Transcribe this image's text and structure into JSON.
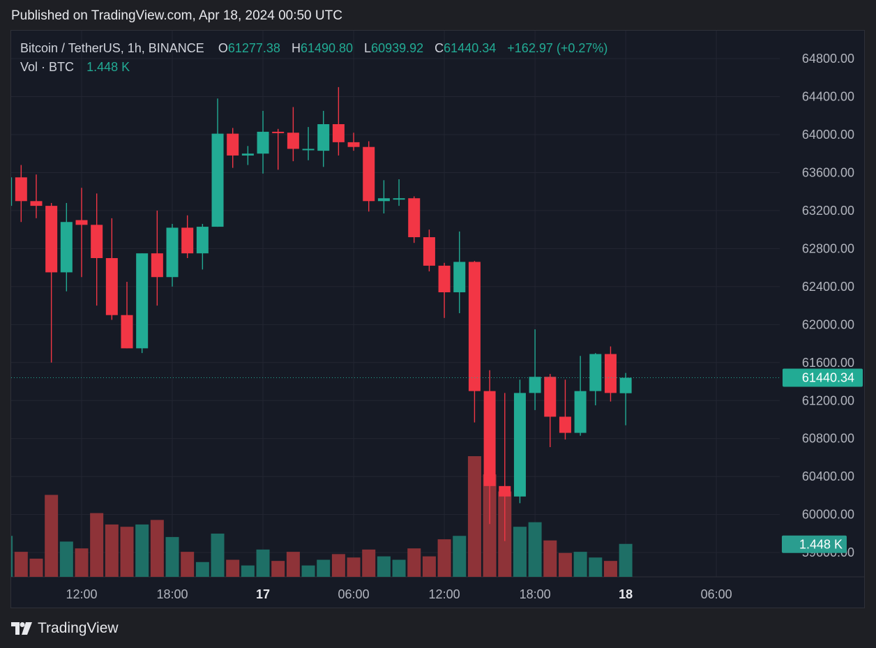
{
  "header": {
    "published_text": "Published on TradingView.com, Apr 18, 2024 00:50 UTC"
  },
  "legend": {
    "symbol": "Bitcoin / TetherUS, 1h, BINANCE",
    "o_label": "O",
    "o_value": "61277.38",
    "h_label": "H",
    "h_value": "61490.80",
    "l_label": "L",
    "l_value": "60939.92",
    "c_label": "C",
    "c_value": "61440.34",
    "change": "+162.97 (+0.27%)",
    "vol_label": "Vol · BTC",
    "vol_value": "1.448 K"
  },
  "footer": {
    "brand": "TradingView"
  },
  "colors": {
    "up": "#22ab94",
    "down": "#f23645",
    "up_volume": "#1e6f66",
    "down_volume": "#8e3338",
    "background": "#161a25",
    "grid": "#232632",
    "axis_text": "#b2b5be"
  },
  "chart_data": {
    "type": "candlestick",
    "symbol": "Bitcoin / TetherUS",
    "interval": "1h",
    "exchange": "BINANCE",
    "price_axis": {
      "range": [
        59300,
        65050
      ],
      "ticks": [
        "64800.00",
        "64400.00",
        "64000.00",
        "63600.00",
        "63200.00",
        "62800.00",
        "62400.00",
        "62000.00",
        "61600.00",
        "61200.00",
        "60800.00",
        "60400.00",
        "60000.00",
        "59600.00"
      ]
    },
    "time_axis": {
      "labels": [
        {
          "text": "12:00",
          "hours": 0,
          "bold": false
        },
        {
          "text": "18:00",
          "hours": 6,
          "bold": false
        },
        {
          "text": "17",
          "hours": 12,
          "bold": true
        },
        {
          "text": "06:00",
          "hours": 18,
          "bold": false
        },
        {
          "text": "12:00",
          "hours": 24,
          "bold": false
        },
        {
          "text": "18:00",
          "hours": 30,
          "bold": false
        },
        {
          "text": "18",
          "hours": 36,
          "bold": true
        },
        {
          "text": "06:00",
          "hours": 42,
          "bold": false
        }
      ]
    },
    "last_price": "61440.34",
    "last_volume": "1.448 K",
    "volume_max": 5.3,
    "candles": [
      {
        "t": -5,
        "o": 63250,
        "h": 63650,
        "l": 63200,
        "c": 63550,
        "v": 1.8
      },
      {
        "t": -4,
        "o": 63550,
        "h": 63680,
        "l": 63080,
        "c": 63300,
        "v": 1.1
      },
      {
        "t": -3,
        "o": 63300,
        "h": 63580,
        "l": 63120,
        "c": 63250,
        "v": 0.8
      },
      {
        "t": -2,
        "o": 63250,
        "h": 63280,
        "l": 61600,
        "c": 62550,
        "v": 3.6
      },
      {
        "t": -1,
        "o": 62550,
        "h": 63280,
        "l": 62350,
        "c": 63080,
        "v": 1.55
      },
      {
        "t": 0,
        "o": 63100,
        "h": 63440,
        "l": 62500,
        "c": 63050,
        "v": 1.25
      },
      {
        "t": 1,
        "o": 63050,
        "h": 63380,
        "l": 62200,
        "c": 62700,
        "v": 2.8
      },
      {
        "t": 2,
        "o": 62700,
        "h": 63120,
        "l": 62050,
        "c": 62100,
        "v": 2.3
      },
      {
        "t": 3,
        "o": 62100,
        "h": 62450,
        "l": 61750,
        "c": 61750,
        "v": 2.2
      },
      {
        "t": 4,
        "o": 61750,
        "h": 62750,
        "l": 61700,
        "c": 62750,
        "v": 2.3
      },
      {
        "t": 5,
        "o": 62750,
        "h": 63200,
        "l": 62200,
        "c": 62500,
        "v": 2.5
      },
      {
        "t": 6,
        "o": 62500,
        "h": 63060,
        "l": 62400,
        "c": 63020,
        "v": 1.75
      },
      {
        "t": 7,
        "o": 63020,
        "h": 63150,
        "l": 62700,
        "c": 62750,
        "v": 1.1
      },
      {
        "t": 8,
        "o": 62750,
        "h": 63060,
        "l": 62580,
        "c": 63030,
        "v": 0.65
      },
      {
        "t": 9,
        "o": 63030,
        "h": 64380,
        "l": 63030,
        "c": 64010,
        "v": 1.9
      },
      {
        "t": 10,
        "o": 64010,
        "h": 64070,
        "l": 63650,
        "c": 63780,
        "v": 0.75
      },
      {
        "t": 11,
        "o": 63780,
        "h": 63880,
        "l": 63680,
        "c": 63800,
        "v": 0.5
      },
      {
        "t": 12,
        "o": 63800,
        "h": 64250,
        "l": 63590,
        "c": 64030,
        "v": 1.2
      },
      {
        "t": 13,
        "o": 64030,
        "h": 64060,
        "l": 63630,
        "c": 64020,
        "v": 0.7
      },
      {
        "t": 14,
        "o": 64020,
        "h": 64290,
        "l": 63720,
        "c": 63850,
        "v": 1.1
      },
      {
        "t": 15,
        "o": 63850,
        "h": 64080,
        "l": 63730,
        "c": 63850,
        "v": 0.5
      },
      {
        "t": 16,
        "o": 63830,
        "h": 64250,
        "l": 63660,
        "c": 64110,
        "v": 0.75
      },
      {
        "t": 17,
        "o": 64110,
        "h": 64500,
        "l": 63780,
        "c": 63920,
        "v": 1.0
      },
      {
        "t": 18,
        "o": 63920,
        "h": 64020,
        "l": 63830,
        "c": 63870,
        "v": 0.85
      },
      {
        "t": 19,
        "o": 63870,
        "h": 63930,
        "l": 63190,
        "c": 63300,
        "v": 1.2
      },
      {
        "t": 20,
        "o": 63300,
        "h": 63520,
        "l": 63170,
        "c": 63330,
        "v": 0.9
      },
      {
        "t": 21,
        "o": 63330,
        "h": 63530,
        "l": 63250,
        "c": 63330,
        "v": 0.75
      },
      {
        "t": 22,
        "o": 63330,
        "h": 63350,
        "l": 62860,
        "c": 62920,
        "v": 1.25
      },
      {
        "t": 23,
        "o": 62920,
        "h": 63000,
        "l": 62560,
        "c": 62620,
        "v": 0.9
      },
      {
        "t": 24,
        "o": 62620,
        "h": 62650,
        "l": 62070,
        "c": 62340,
        "v": 1.65
      },
      {
        "t": 25,
        "o": 62340,
        "h": 62980,
        "l": 62120,
        "c": 62660,
        "v": 1.8
      },
      {
        "t": 26,
        "o": 62660,
        "h": 62670,
        "l": 60970,
        "c": 61300,
        "v": 5.3
      },
      {
        "t": 27,
        "o": 61300,
        "h": 61520,
        "l": 59900,
        "c": 60300,
        "v": 4.5
      },
      {
        "t": 28,
        "o": 60300,
        "h": 61280,
        "l": 59720,
        "c": 60190,
        "v": 3.75
      },
      {
        "t": 29,
        "o": 60190,
        "h": 61420,
        "l": 60120,
        "c": 61280,
        "v": 2.2
      },
      {
        "t": 30,
        "o": 61280,
        "h": 61950,
        "l": 61100,
        "c": 61450,
        "v": 2.4
      },
      {
        "t": 31,
        "o": 61450,
        "h": 61480,
        "l": 60710,
        "c": 61030,
        "v": 1.6
      },
      {
        "t": 32,
        "o": 61030,
        "h": 61420,
        "l": 60790,
        "c": 60860,
        "v": 1.05
      },
      {
        "t": 33,
        "o": 60860,
        "h": 61670,
        "l": 60830,
        "c": 61300,
        "v": 1.1
      },
      {
        "t": 34,
        "o": 61300,
        "h": 61700,
        "l": 61150,
        "c": 61690,
        "v": 0.85
      },
      {
        "t": 35,
        "o": 61690,
        "h": 61770,
        "l": 61190,
        "c": 61280,
        "v": 0.7
      },
      {
        "t": 36,
        "o": 61277.38,
        "h": 61490.8,
        "l": 60939.92,
        "c": 61440.34,
        "v": 1.448
      }
    ]
  }
}
